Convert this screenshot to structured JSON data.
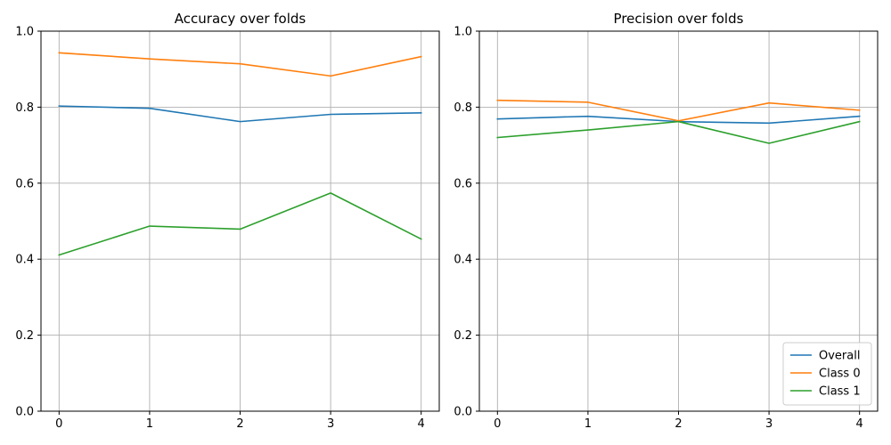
{
  "chart_data": [
    {
      "type": "line",
      "title": "Accuracy over folds",
      "xlabel": "",
      "ylabel": "",
      "x": [
        0,
        1,
        2,
        3,
        4
      ],
      "xlim": [
        -0.2,
        4.2
      ],
      "ylim": [
        0.0,
        1.0
      ],
      "xticks": [
        "0",
        "1",
        "2",
        "3",
        "4"
      ],
      "yticks": [
        "0.0",
        "0.2",
        "0.4",
        "0.6",
        "0.8",
        "1.0"
      ],
      "grid": true,
      "legend": null,
      "series": [
        {
          "name": "Overall",
          "color": "#1f77b4",
          "values": [
            0.803,
            0.797,
            0.762,
            0.781,
            0.785
          ]
        },
        {
          "name": "Class 0",
          "color": "#ff7f0e",
          "values": [
            0.943,
            0.927,
            0.914,
            0.882,
            0.933
          ]
        },
        {
          "name": "Class 1",
          "color": "#2ca02c",
          "values": [
            0.411,
            0.487,
            0.479,
            0.574,
            0.453
          ]
        }
      ]
    },
    {
      "type": "line",
      "title": "Precision over folds",
      "xlabel": "",
      "ylabel": "",
      "x": [
        0,
        1,
        2,
        3,
        4
      ],
      "xlim": [
        -0.2,
        4.2
      ],
      "ylim": [
        0.0,
        1.0
      ],
      "xticks": [
        "0",
        "1",
        "2",
        "3",
        "4"
      ],
      "yticks": [
        "0.0",
        "0.2",
        "0.4",
        "0.6",
        "0.8",
        "1.0"
      ],
      "grid": true,
      "legend": "lower-right",
      "series": [
        {
          "name": "Overall",
          "color": "#1f77b4",
          "values": [
            0.769,
            0.776,
            0.762,
            0.758,
            0.776
          ]
        },
        {
          "name": "Class 0",
          "color": "#ff7f0e",
          "values": [
            0.818,
            0.813,
            0.764,
            0.811,
            0.792
          ]
        },
        {
          "name": "Class 1",
          "color": "#2ca02c",
          "values": [
            0.72,
            0.74,
            0.762,
            0.705,
            0.762
          ]
        }
      ]
    }
  ]
}
